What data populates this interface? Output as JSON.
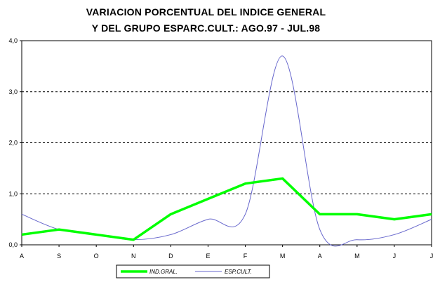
{
  "chart_data": {
    "type": "line",
    "title_line_1": "VARIACION PORCENTUAL DEL INDICE GENERAL",
    "title_line_2": "Y DEL GRUPO ESPARC.CULT.: AGO.97 - JUL.98",
    "categories": [
      "A",
      "S",
      "O",
      "N",
      "D",
      "E",
      "F",
      "M",
      "A",
      "M",
      "J",
      "J"
    ],
    "yticks": [
      "0,0",
      "1,0",
      "2,0",
      "3,0",
      "4,0"
    ],
    "ylim": [
      0,
      4
    ],
    "grid": "dashed horizontal at 1,0 2,0 3,0",
    "legend_position": "bottom",
    "series": [
      {
        "name": "IND.GRAL.",
        "color": "#00ff00",
        "values": [
          0.2,
          0.3,
          0.2,
          0.1,
          0.6,
          0.9,
          1.2,
          1.3,
          0.6,
          0.6,
          0.5,
          0.6
        ]
      },
      {
        "name": "ESP.CULT.",
        "color": "#6666cc",
        "values": [
          0.6,
          0.3,
          0.2,
          0.1,
          0.2,
          0.5,
          0.6,
          3.7,
          0.3,
          0.1,
          0.2,
          0.5
        ]
      }
    ]
  }
}
